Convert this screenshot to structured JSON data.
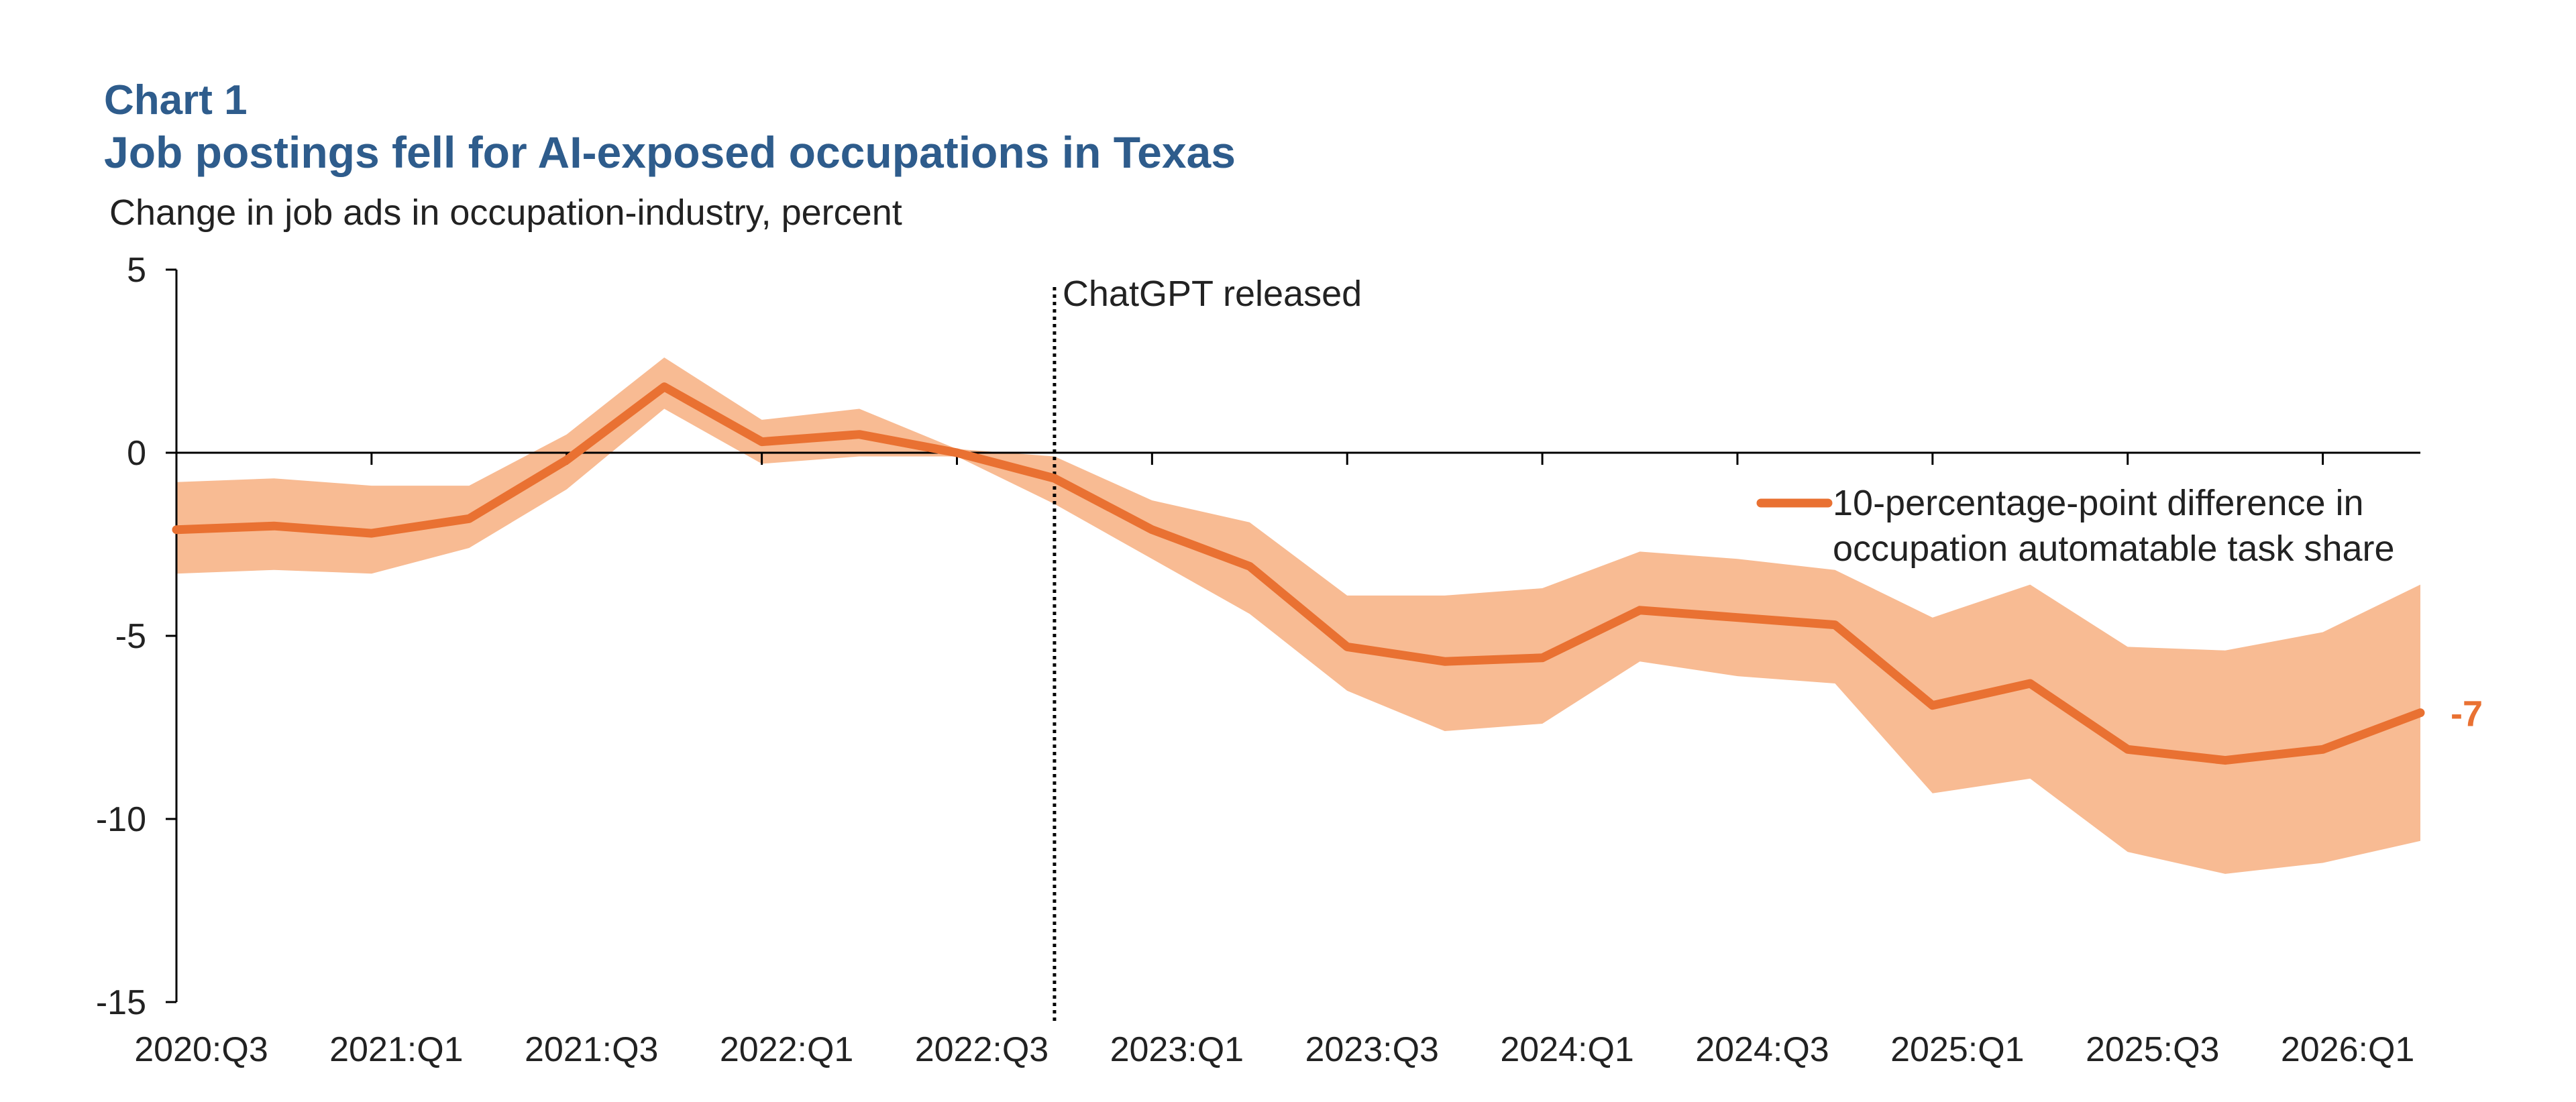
{
  "chart_data": {
    "type": "line",
    "label": "Chart 1",
    "title": "Job postings fell for AI-exposed occupations in Texas",
    "ylabel": "Change in job ads in occupation-industry,  percent",
    "ylim": [
      -15,
      5
    ],
    "y_ticks": [
      "5",
      "0",
      "-5",
      "-10",
      "-15"
    ],
    "x_tick_labels": [
      "2020:Q3",
      "2021:Q1",
      "2021:Q3",
      "2022:Q1",
      "2022:Q3",
      "2023:Q1",
      "2023:Q3",
      "2024:Q1",
      "2024:Q3",
      "2025:Q1",
      "2025:Q3",
      "2026:Q1"
    ],
    "annotation": {
      "text": "ChatGPT released",
      "at": "2022:Q4"
    },
    "end_label": "-7",
    "legend": {
      "position": "top-right",
      "lines": [
        "10-percentage-point difference in",
        "occupation automatable task share"
      ]
    },
    "colors": {
      "line": "#e97132",
      "band": "#f8bb93",
      "title": "#2e5c8c",
      "end_label": "#e97132"
    },
    "x": [
      "2020:Q3",
      "2020:Q4",
      "2021:Q1",
      "2021:Q2",
      "2021:Q3",
      "2021:Q4",
      "2022:Q1",
      "2022:Q2",
      "2022:Q3",
      "2022:Q4",
      "2023:Q1",
      "2023:Q2",
      "2023:Q3",
      "2023:Q4",
      "2024:Q1",
      "2024:Q2",
      "2024:Q3",
      "2024:Q4",
      "2025:Q1",
      "2025:Q2",
      "2025:Q3",
      "2025:Q4",
      "2026:Q1",
      "2026:Q2"
    ],
    "series": [
      {
        "name": "10-percentage-point difference in occupation automatable task share",
        "values": [
          -2.1,
          -2.0,
          -2.2,
          -1.8,
          -0.2,
          1.8,
          0.3,
          0.5,
          0.0,
          -0.7,
          -2.1,
          -3.1,
          -5.3,
          -5.7,
          -5.6,
          -4.3,
          -4.5,
          -4.7,
          -6.9,
          -6.3,
          -8.1,
          -8.4,
          -8.1,
          -7.1
        ],
        "lower": [
          -3.3,
          -3.2,
          -3.3,
          -2.6,
          -1.0,
          1.2,
          -0.3,
          -0.1,
          -0.1,
          -1.4,
          -2.9,
          -4.4,
          -6.5,
          -7.6,
          -7.4,
          -5.7,
          -6.1,
          -6.3,
          -9.3,
          -8.9,
          -10.9,
          -11.5,
          -11.2,
          -10.6
        ],
        "upper": [
          -0.8,
          -0.7,
          -0.9,
          -0.9,
          0.5,
          2.6,
          0.9,
          1.2,
          0.1,
          -0.1,
          -1.3,
          -1.9,
          -3.9,
          -3.9,
          -3.7,
          -2.7,
          -2.9,
          -3.2,
          -4.5,
          -3.6,
          -5.3,
          -5.4,
          -4.9,
          -3.6
        ]
      }
    ]
  }
}
